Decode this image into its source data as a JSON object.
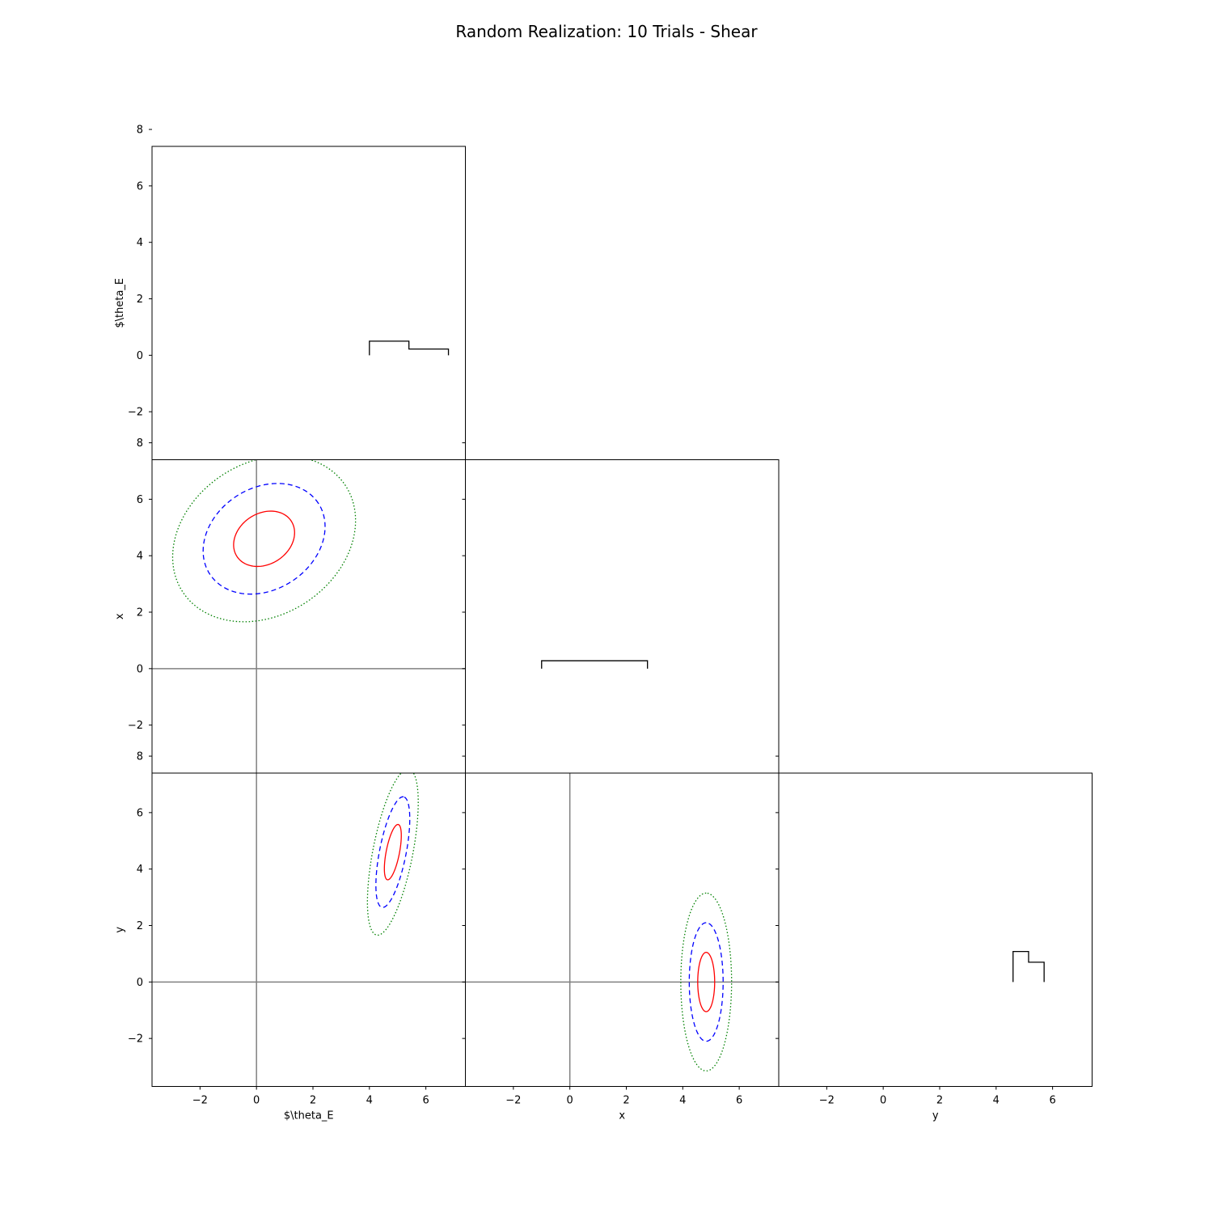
{
  "chart_data": {
    "type": "corner",
    "title": "Random Realization: 10 Trials - Shear",
    "parameters": [
      "$\\theta_E",
      "x",
      "y"
    ],
    "axis_range": [
      -3.7,
      7.4
    ],
    "ticks": [
      -2,
      0,
      2,
      4,
      6
    ],
    "y_ticks": [
      -2,
      0,
      2,
      4,
      6,
      8
    ],
    "tick_labels": [
      "−2",
      "0",
      "2",
      "4",
      "6"
    ],
    "y_tick_labels": [
      "−2",
      "0",
      "2",
      "4",
      "6",
      "8"
    ],
    "reference_lines": {
      "x": 0,
      "y": 0,
      "color": "#808080"
    },
    "histograms": [
      {
        "parameter": "$\\theta_E",
        "edges": [
          4.0,
          5.4,
          6.8
        ],
        "heights": [
          0.5,
          0.22
        ],
        "color": "#000000"
      },
      {
        "parameter": "x",
        "edges": [
          -1.0,
          2.75
        ],
        "heights": [
          0.28
        ],
        "color": "#000000"
      },
      {
        "parameter": "y",
        "edges": [
          4.6,
          5.15,
          5.7
        ],
        "heights": [
          1.08,
          0.7
        ],
        "color": "#000000"
      }
    ],
    "contours": [
      {
        "x_param": "$\\theta_E",
        "y_param": "x",
        "center": [
          0.27,
          4.6
        ],
        "sigma": [
          1.08,
          0.98
        ],
        "rho": 0.22,
        "levels": [
          {
            "n_sigma": 1,
            "color": "#ff0000",
            "style": "solid"
          },
          {
            "n_sigma": 2,
            "color": "#0000ff",
            "style": "dashed"
          },
          {
            "n_sigma": 3,
            "color": "#008000",
            "style": "dotted"
          }
        ]
      },
      {
        "x_param": "$\\theta_E",
        "y_param": "y",
        "center": [
          4.83,
          4.6
        ],
        "sigma": [
          0.3,
          0.98
        ],
        "rho": 0.6,
        "levels": [
          {
            "n_sigma": 1,
            "color": "#ff0000",
            "style": "solid"
          },
          {
            "n_sigma": 2,
            "color": "#0000ff",
            "style": "dashed"
          },
          {
            "n_sigma": 3,
            "color": "#008000",
            "style": "dotted"
          }
        ]
      },
      {
        "x_param": "x",
        "y_param": "y",
        "center": [
          4.83,
          0.0
        ],
        "sigma": [
          0.3,
          1.05
        ],
        "rho": 0.0,
        "levels": [
          {
            "n_sigma": 1,
            "color": "#ff0000",
            "style": "solid"
          },
          {
            "n_sigma": 2,
            "color": "#0000ff",
            "style": "dashed"
          },
          {
            "n_sigma": 3,
            "color": "#008000",
            "style": "dotted"
          }
        ]
      }
    ]
  }
}
